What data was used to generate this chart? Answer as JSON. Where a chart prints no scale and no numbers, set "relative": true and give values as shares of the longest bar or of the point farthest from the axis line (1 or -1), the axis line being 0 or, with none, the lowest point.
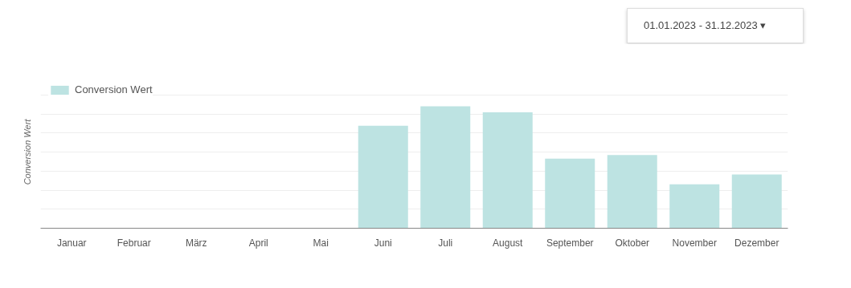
{
  "chart_data": {
    "type": "bar",
    "relative": true,
    "ylabel": "Conversion Wert",
    "categories": [
      "Januar",
      "Februar",
      "März",
      "April",
      "Mai",
      "Juni",
      "Juli",
      "August",
      "September",
      "Oktober",
      "November",
      "Dezember"
    ],
    "series": [
      {
        "name": "Conversion Wert",
        "color": "#bde3e2",
        "values": [
          0,
          0,
          0,
          0,
          0,
          0.84,
          1,
          0.95,
          0.57,
          0.6,
          0.36,
          0.44
        ]
      }
    ],
    "annotations": [
      "01.01.2023 - 31.12.2023 ▾"
    ],
    "grid": "y",
    "legend": "top left"
  }
}
